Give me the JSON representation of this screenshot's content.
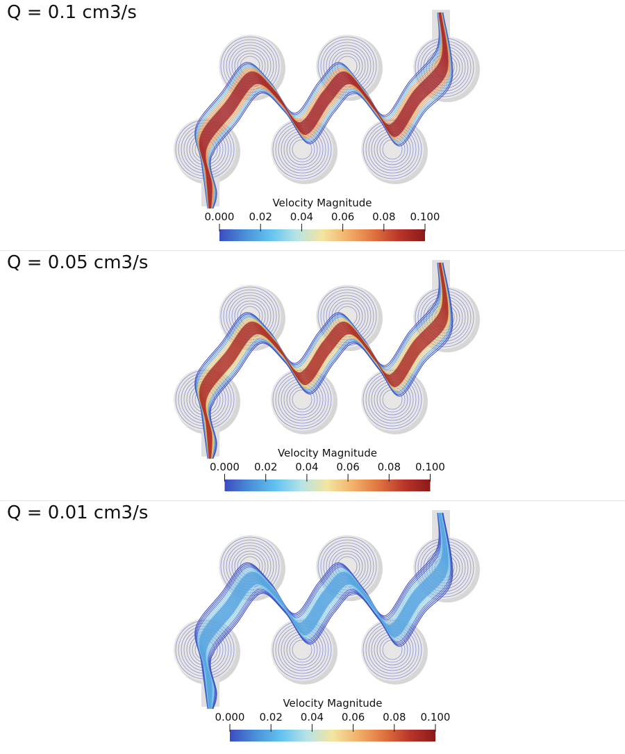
{
  "panels": [
    {
      "title": "Q = 0.1 cm3/s",
      "colorbar": {
        "title": "Velocity Magnitude",
        "range": [
          0,
          0.1
        ],
        "ticks": [
          {
            "value": 0,
            "label": "0.000"
          },
          0.02,
          0.04,
          0.06,
          0.08,
          {
            "value": 0.1,
            "label": "0.100"
          }
        ]
      }
    },
    {
      "title": "Q = 0.05 cm3/s",
      "colorbar": {
        "title": "Velocity Magnitude",
        "range": [
          0,
          0.1
        ],
        "ticks": [
          {
            "value": 0,
            "label": "0.000"
          },
          0.02,
          0.04,
          0.06,
          0.08,
          {
            "value": 0.1,
            "label": "0.100"
          }
        ]
      }
    },
    {
      "title": "Q = 0.01 cm3/s",
      "colorbar": {
        "title": "Velocity Magnitude",
        "range": [
          0,
          0.1
        ],
        "ticks": [
          {
            "value": 0,
            "label": "0.000"
          },
          0.02,
          0.04,
          0.06,
          0.08,
          {
            "value": 0.1,
            "label": "0.100"
          }
        ]
      }
    }
  ],
  "colormap": [
    "#3b4cc0",
    "#4a90d9",
    "#63c3f0",
    "#b6e3e6",
    "#f3e5a0",
    "#f2b06a",
    "#e0733f",
    "#b9352a",
    "#8b1a1a"
  ]
}
